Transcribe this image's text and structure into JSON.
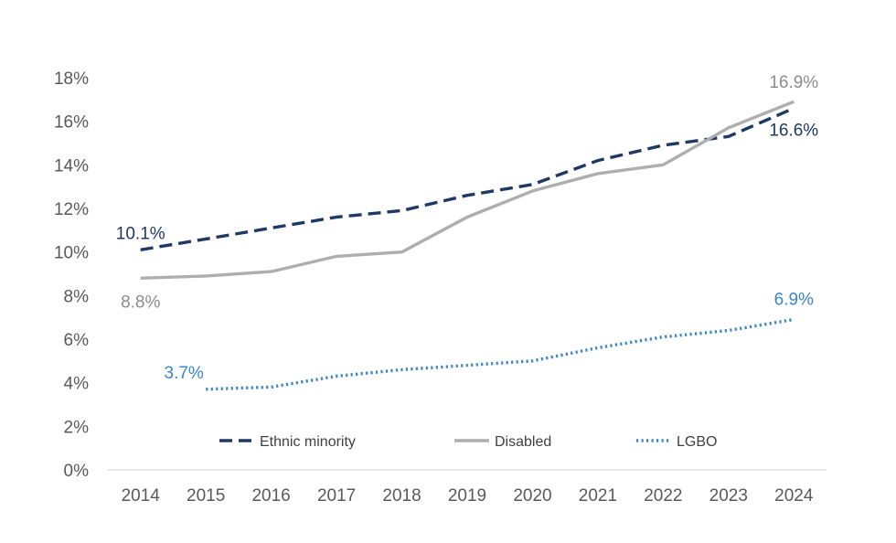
{
  "chart_data": {
    "type": "line",
    "title": "",
    "xlabel": "",
    "ylabel": "",
    "ylim": [
      0,
      18
    ],
    "yticks": [
      "0%",
      "2%",
      "4%",
      "6%",
      "8%",
      "10%",
      "12%",
      "14%",
      "16%",
      "18%"
    ],
    "categories": [
      "2014",
      "2015",
      "2016",
      "2017",
      "2018",
      "2019",
      "2020",
      "2021",
      "2022",
      "2023",
      "2024"
    ],
    "series": [
      {
        "name": "Ethnic minority",
        "style": "dashed",
        "color": "#1f3864",
        "values": [
          10.1,
          10.6,
          11.1,
          11.6,
          11.9,
          12.6,
          13.1,
          14.2,
          14.9,
          15.3,
          16.6
        ],
        "labels": [
          {
            "index": 0,
            "text": "10.1%"
          },
          {
            "index": 10,
            "text": "16.6%"
          }
        ]
      },
      {
        "name": "Disabled",
        "style": "solid",
        "color": "#aeaeae",
        "values": [
          8.8,
          8.9,
          9.1,
          9.8,
          10.0,
          11.6,
          12.8,
          13.6,
          14.0,
          15.7,
          16.9
        ],
        "labels": [
          {
            "index": 0,
            "text": "8.8%"
          },
          {
            "index": 10,
            "text": "16.9%"
          }
        ]
      },
      {
        "name": "LGBO",
        "style": "dotted",
        "color": "#3a86c8",
        "values": [
          null,
          3.7,
          3.8,
          4.3,
          4.6,
          4.8,
          5.0,
          5.6,
          6.1,
          6.4,
          6.9
        ],
        "labels": [
          {
            "index": 1,
            "text": "3.7%"
          },
          {
            "index": 10,
            "text": "6.9%"
          }
        ]
      }
    ],
    "legend": {
      "position": "inside-bottom",
      "entries": [
        "Ethnic minority",
        "Disabled",
        "LGBO"
      ]
    },
    "grid": false
  }
}
